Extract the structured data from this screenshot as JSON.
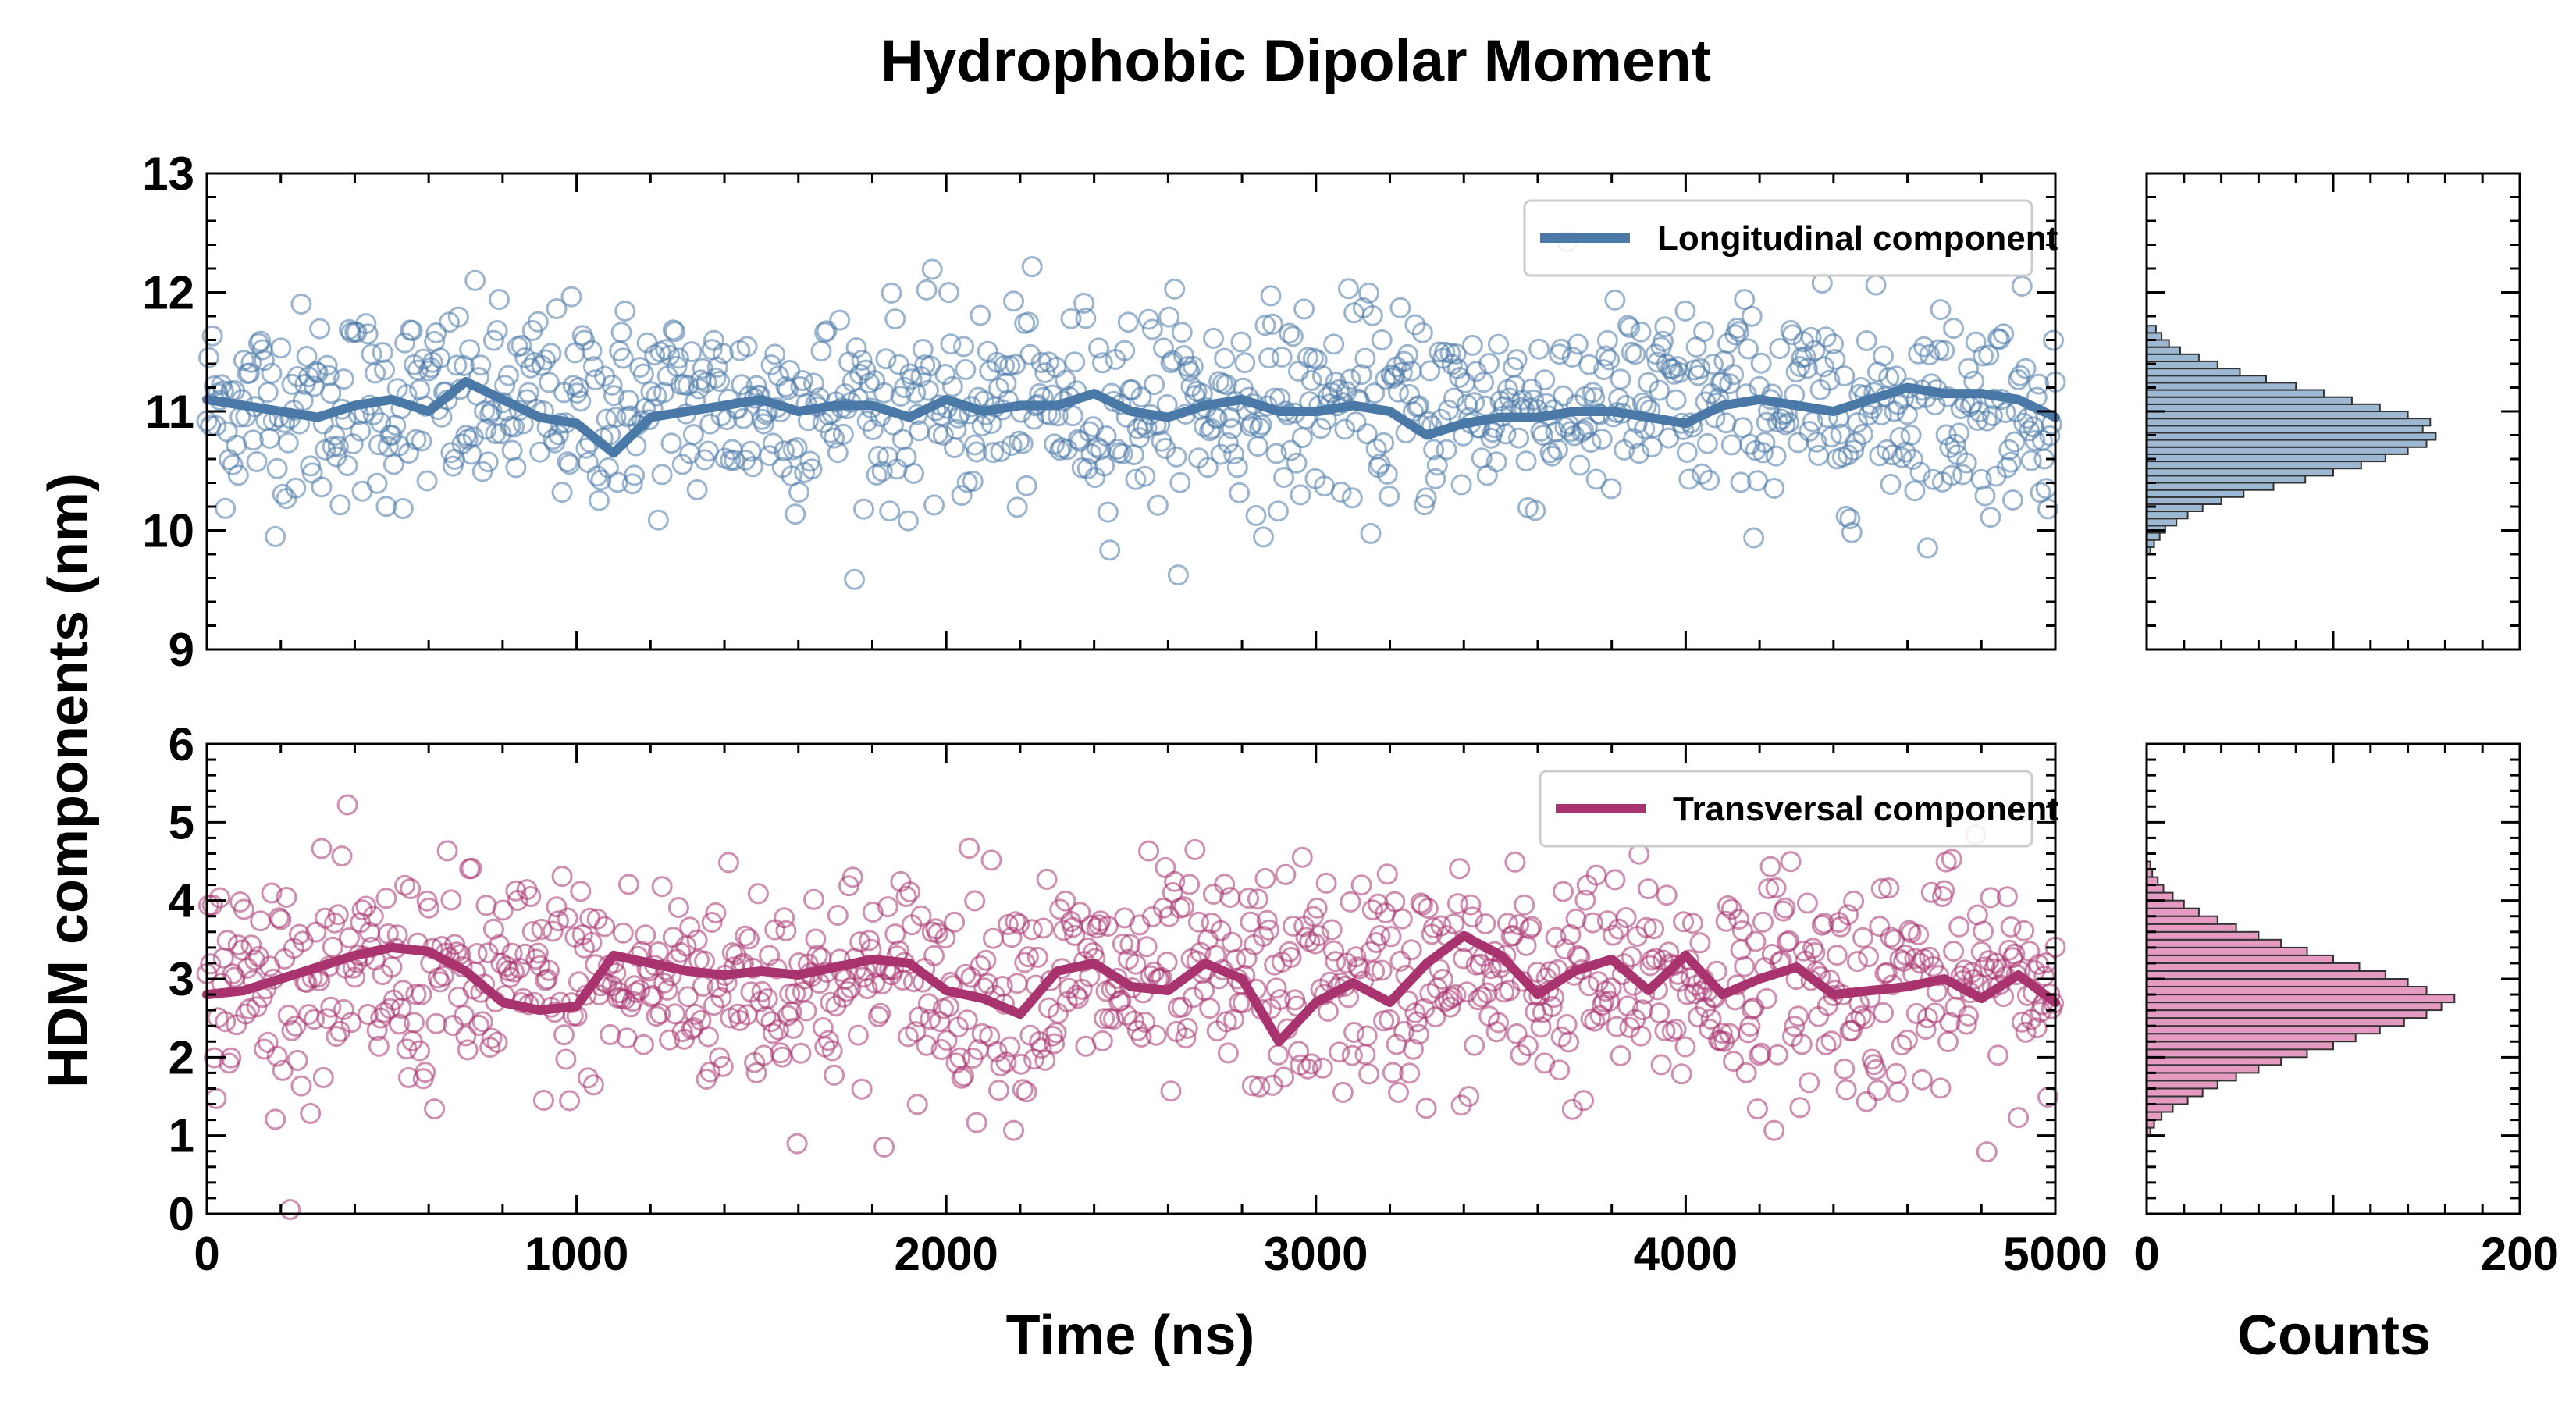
{
  "chart_data": {
    "type": "scatter",
    "title": "Hydrophobic Dipolar Moment",
    "ylabel": "HDM components (nm)",
    "xlabel": "Time (ns)",
    "hist_xlabel": "Counts",
    "colors": {
      "longitudinal": "#4a79a8",
      "transversal": "#a8336f",
      "longitudinal_fill": "#9db8d3",
      "transversal_fill": "#e59ac1"
    },
    "panels": [
      {
        "id": "longitudinal",
        "series_name": "Longitudinal component",
        "xlim": [
          0,
          5000
        ],
        "ylim": [
          9,
          13
        ],
        "x_ticks": [
          0,
          1000,
          2000,
          3000,
          4000,
          5000
        ],
        "y_ticks": [
          9,
          10,
          11,
          12,
          13
        ],
        "y_tick_labels": [
          "9",
          "10",
          "11",
          "12",
          "13"
        ],
        "legend_position": "upper-right",
        "scatter_mean": 11.05,
        "scatter_spread": 0.42,
        "n_points": 1000,
        "running_average": [
          [
            0,
            11.1
          ],
          [
            100,
            11.05
          ],
          [
            200,
            11.0
          ],
          [
            300,
            10.95
          ],
          [
            400,
            11.05
          ],
          [
            500,
            11.1
          ],
          [
            600,
            11.0
          ],
          [
            700,
            11.25
          ],
          [
            800,
            11.1
          ],
          [
            900,
            10.95
          ],
          [
            1000,
            10.9
          ],
          [
            1100,
            10.65
          ],
          [
            1200,
            10.95
          ],
          [
            1300,
            11.0
          ],
          [
            1400,
            11.05
          ],
          [
            1500,
            11.1
          ],
          [
            1600,
            11.0
          ],
          [
            1700,
            11.05
          ],
          [
            1800,
            11.05
          ],
          [
            1900,
            10.95
          ],
          [
            2000,
            11.1
          ],
          [
            2100,
            11.0
          ],
          [
            2200,
            11.05
          ],
          [
            2300,
            11.05
          ],
          [
            2400,
            11.15
          ],
          [
            2500,
            11.0
          ],
          [
            2600,
            10.95
          ],
          [
            2700,
            11.05
          ],
          [
            2800,
            11.1
          ],
          [
            2900,
            11.0
          ],
          [
            3000,
            11.0
          ],
          [
            3100,
            11.05
          ],
          [
            3200,
            11.0
          ],
          [
            3300,
            10.8
          ],
          [
            3400,
            10.9
          ],
          [
            3500,
            10.95
          ],
          [
            3600,
            10.95
          ],
          [
            3700,
            11.0
          ],
          [
            3800,
            11.0
          ],
          [
            3900,
            10.95
          ],
          [
            4000,
            10.9
          ],
          [
            4100,
            11.05
          ],
          [
            4200,
            11.1
          ],
          [
            4300,
            11.05
          ],
          [
            4400,
            11.0
          ],
          [
            4500,
            11.1
          ],
          [
            4600,
            11.2
          ],
          [
            4700,
            11.15
          ],
          [
            4800,
            11.15
          ],
          [
            4900,
            11.1
          ],
          [
            5000,
            10.95
          ]
        ],
        "histogram": {
          "xlim": [
            0,
            200
          ],
          "x_ticks": [
            0,
            200
          ],
          "bin_edges_start": 9.8,
          "bin_width": 0.06,
          "counts": [
            2,
            4,
            7,
            10,
            16,
            22,
            30,
            40,
            52,
            68,
            85,
            100,
            115,
            128,
            140,
            150,
            155,
            148,
            152,
            140,
            125,
            110,
            95,
            80,
            64,
            50,
            38,
            28,
            18,
            12,
            8,
            5
          ]
        }
      },
      {
        "id": "transversal",
        "series_name": "Transversal component",
        "xlim": [
          0,
          5000
        ],
        "ylim": [
          0,
          6
        ],
        "x_ticks": [
          0,
          1000,
          2000,
          3000,
          4000,
          5000
        ],
        "y_ticks": [
          0,
          1,
          2,
          3,
          4,
          5,
          6
        ],
        "y_tick_labels": [
          "0",
          "1",
          "2",
          "3",
          "4",
          "5",
          "6"
        ],
        "legend_position": "upper-right",
        "scatter_mean": 2.95,
        "scatter_spread": 0.72,
        "n_points": 1000,
        "running_average": [
          [
            0,
            2.8
          ],
          [
            100,
            2.85
          ],
          [
            200,
            3.0
          ],
          [
            300,
            3.15
          ],
          [
            400,
            3.3
          ],
          [
            500,
            3.4
          ],
          [
            600,
            3.35
          ],
          [
            700,
            3.1
          ],
          [
            800,
            2.7
          ],
          [
            900,
            2.6
          ],
          [
            1000,
            2.65
          ],
          [
            1100,
            3.3
          ],
          [
            1200,
            3.2
          ],
          [
            1300,
            3.1
          ],
          [
            1400,
            3.05
          ],
          [
            1500,
            3.1
          ],
          [
            1600,
            3.05
          ],
          [
            1700,
            3.15
          ],
          [
            1800,
            3.25
          ],
          [
            1900,
            3.2
          ],
          [
            2000,
            2.85
          ],
          [
            2100,
            2.75
          ],
          [
            2200,
            2.55
          ],
          [
            2300,
            3.1
          ],
          [
            2400,
            3.2
          ],
          [
            2500,
            2.9
          ],
          [
            2600,
            2.85
          ],
          [
            2700,
            3.2
          ],
          [
            2800,
            3.0
          ],
          [
            2900,
            2.2
          ],
          [
            3000,
            2.7
          ],
          [
            3100,
            2.95
          ],
          [
            3200,
            2.7
          ],
          [
            3300,
            3.2
          ],
          [
            3400,
            3.55
          ],
          [
            3500,
            3.3
          ],
          [
            3600,
            2.8
          ],
          [
            3700,
            3.1
          ],
          [
            3800,
            3.25
          ],
          [
            3900,
            2.85
          ],
          [
            4000,
            3.3
          ],
          [
            4100,
            2.8
          ],
          [
            4200,
            3.0
          ],
          [
            4300,
            3.15
          ],
          [
            4400,
            2.8
          ],
          [
            4500,
            2.85
          ],
          [
            4600,
            2.9
          ],
          [
            4700,
            3.0
          ],
          [
            4800,
            2.75
          ],
          [
            4900,
            3.05
          ],
          [
            5000,
            2.7
          ]
        ],
        "histogram": {
          "xlim": [
            0,
            200
          ],
          "x_ticks": [
            0,
            200
          ],
          "bin_edges_start": 1.0,
          "bin_width": 0.1,
          "counts": [
            2,
            4,
            8,
            14,
            22,
            30,
            38,
            48,
            60,
            72,
            86,
            100,
            112,
            125,
            138,
            150,
            158,
            165,
            150,
            140,
            128,
            114,
            100,
            86,
            72,
            60,
            48,
            38,
            28,
            20,
            14,
            9,
            6,
            3,
            2
          ]
        }
      }
    ]
  }
}
